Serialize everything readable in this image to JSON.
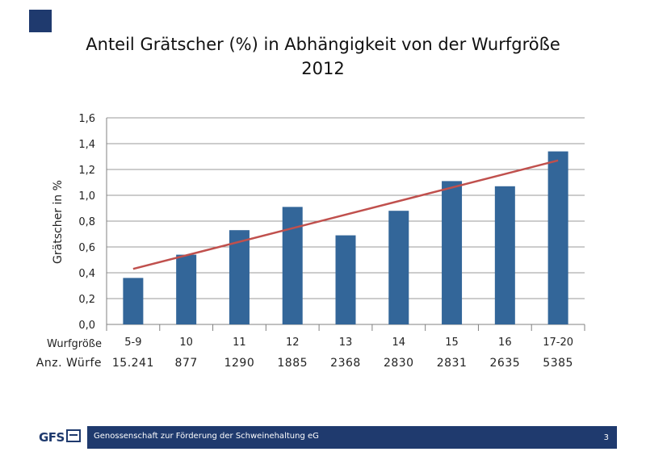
{
  "chart_data": {
    "type": "bar",
    "title": "Anteil Grätscher (%) in Abhängigkeit von der Wurfgröße",
    "subtitle": "2012",
    "ylabel": "Grätscher in %",
    "xlabel": "Wurfgröße",
    "ylim": [
      0,
      1.6
    ],
    "yticks": [
      "0,0",
      "0,2",
      "0,4",
      "0,6",
      "0,8",
      "1,0",
      "1,2",
      "1,4",
      "1,6"
    ],
    "grid": true,
    "categories": [
      "5-9",
      "10",
      "11",
      "12",
      "13",
      "14",
      "15",
      "16",
      "17-20"
    ],
    "series": [
      {
        "values": [
          0.36,
          0.54,
          0.73,
          0.91,
          0.69,
          0.88,
          1.11,
          1.07,
          1.34
        ],
        "color": "#336699"
      }
    ],
    "trendline": {
      "start": 0.43,
      "end": 1.27,
      "color": "#c0504d"
    },
    "row2_label": "Anz. Würfe",
    "row2_values": [
      "15.241",
      "877",
      "1290",
      "1885",
      "2368",
      "2830",
      "2831",
      "2635",
      "5385"
    ]
  },
  "footer": {
    "logo": "GFS",
    "org": "Genossenschaft zur Förderung der Schweinehaltung eG",
    "page": "3"
  },
  "colors": {
    "accent": "#1f3a6e"
  }
}
